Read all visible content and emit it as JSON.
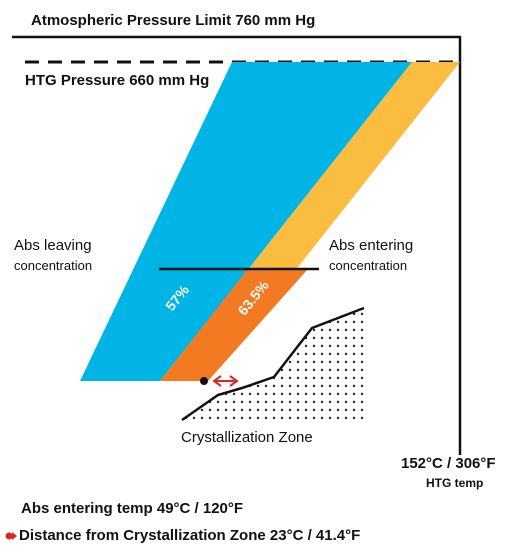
{
  "labels": {
    "atm_limit": "Atmospheric Pressure Limit 760 mm Hg",
    "htg_pressure": "HTG Pressure 660 mm Hg",
    "abs_leaving_1": "Abs leaving",
    "abs_leaving_2": "concentration",
    "abs_entering_1": "Abs entering",
    "abs_entering_2": "concentration",
    "pct_leaving": "57%",
    "pct_entering": "63.5%",
    "cryst_zone": "Crystallization Zone",
    "htg_temp_value": "152°C / 306°F",
    "htg_temp_label": "HTG temp",
    "entering_temp": "Abs entering temp 49°C / 120°F",
    "distance": "Distance from Crystallization Zone 23°C / 41.4°F"
  },
  "colors": {
    "blue": "#00b4e6",
    "yellow": "#fbbd3f",
    "orange": "#f47a22",
    "red": "#d7262e",
    "line": "#111111"
  }
}
